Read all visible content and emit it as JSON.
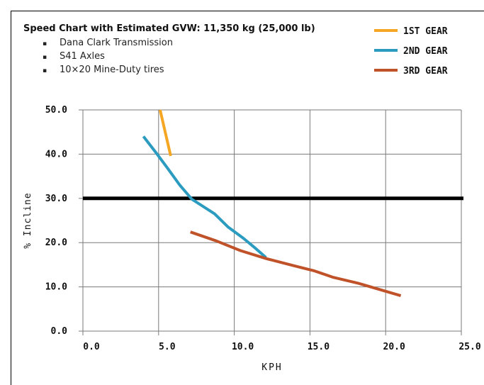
{
  "chart_data": {
    "type": "line",
    "title": "Speed Chart with Estimated GVW: 11,350 kg (25,000 lb)",
    "notes": [
      "Dana Clark Transmission",
      "S41 Axles",
      "10×20 Mine-Duty tires"
    ],
    "xlabel": "KPH",
    "ylabel": "% Incline",
    "xlim": [
      0,
      25
    ],
    "ylim": [
      0,
      50
    ],
    "x_ticks": [
      "0.0",
      "5.0",
      "10.0",
      "15.0",
      "20.0",
      "25.0"
    ],
    "y_ticks": [
      "0.0",
      "10.0",
      "20.0",
      "30.0",
      "40.0",
      "50.0"
    ],
    "grid": true,
    "legend_position": "top-right",
    "reference_line": {
      "y": 30,
      "color": "#000000"
    },
    "series": [
      {
        "name": "1ST GEAR",
        "color": "#f5a623",
        "points": [
          [
            5.1,
            50.0
          ],
          [
            5.8,
            39.6
          ]
        ]
      },
      {
        "name": "2ND GEAR",
        "color": "#2b9bbf",
        "points": [
          [
            4.0,
            44.0
          ],
          [
            4.9,
            40.0
          ],
          [
            5.6,
            36.8
          ],
          [
            6.4,
            33.0
          ],
          [
            7.2,
            29.8
          ],
          [
            8.7,
            26.5
          ],
          [
            9.6,
            23.5
          ],
          [
            10.6,
            21.0
          ],
          [
            11.3,
            19.0
          ],
          [
            12.1,
            16.6
          ]
        ]
      },
      {
        "name": "3RD GEAR",
        "color": "#c0522a",
        "points": [
          [
            7.1,
            22.4
          ],
          [
            8.8,
            20.4
          ],
          [
            10.4,
            18.2
          ],
          [
            12.1,
            16.4
          ],
          [
            13.9,
            14.8
          ],
          [
            15.3,
            13.6
          ],
          [
            16.5,
            12.2
          ],
          [
            18.2,
            10.8
          ],
          [
            19.6,
            9.4
          ],
          [
            21.0,
            8.0
          ]
        ]
      }
    ]
  }
}
